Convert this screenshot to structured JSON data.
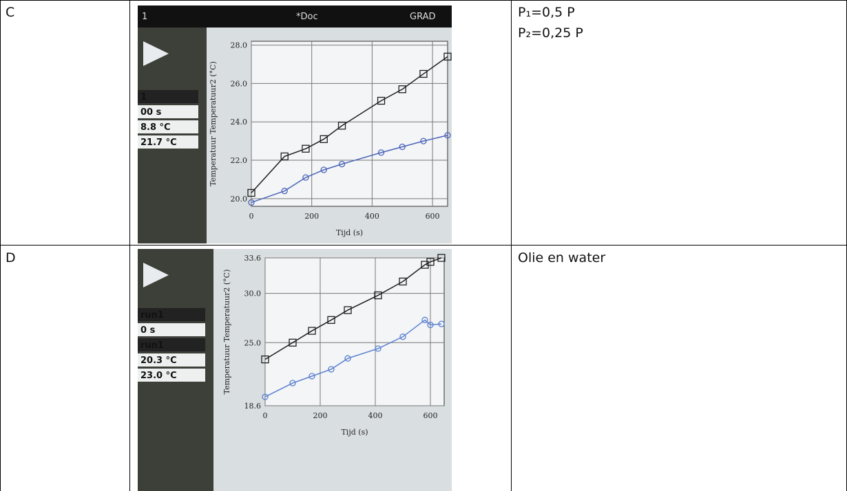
{
  "table": {
    "rows": [
      {
        "label": "C",
        "screen": {
          "topbar": [
            "1",
            "*Doc",
            "GRAD"
          ],
          "sidebar": [
            "1",
            "00 s",
            "8.8 °C",
            "21.7 °C"
          ],
          "plot": {
            "y_label": "Temperatuur Temperatuur2 (°C)",
            "x_label": "Tijd (s)",
            "xlim": [
              0,
              650
            ],
            "ylim": [
              19.6,
              28.2
            ],
            "xticks": [
              0,
              200,
              400,
              600
            ],
            "yticks": [
              {
                "value": 20,
                "label": "20.0"
              },
              {
                "value": 22,
                "label": "22.0"
              },
              {
                "value": 24,
                "label": "24.0"
              },
              {
                "value": 26,
                "label": "26.0"
              },
              {
                "value": 28,
                "label": "28.0"
              }
            ],
            "x": [
              0,
              110,
              180,
              240,
              300,
              430,
              500,
              570,
              650
            ],
            "series": [
              {
                "color": "#1e1e1e",
                "marker": "square",
                "values": [
                  20.3,
                  22.2,
                  22.6,
                  23.1,
                  23.8,
                  25.1,
                  25.7,
                  26.5,
                  27.4
                ]
              },
              {
                "color": "#4a63b8",
                "marker": "circle",
                "values": [
                  19.8,
                  20.4,
                  21.1,
                  21.5,
                  21.8,
                  22.4,
                  22.7,
                  23.0,
                  23.3
                ]
              }
            ]
          }
        },
        "notes": [
          "P₁=0,5 P",
          "P₂=0,25 P"
        ]
      },
      {
        "label": "D",
        "screen": {
          "sidebar": [
            "run1",
            "0 s",
            "run1",
            "20.3 °C",
            "23.0 °C"
          ],
          "plot": {
            "y_label": "Temperatuur Temperatuur2 (°C)",
            "x_label": "Tijd (s)",
            "xlim": [
              0,
              650
            ],
            "ylim": [
              18.6,
              33.6
            ],
            "xticks": [
              0,
              200,
              400,
              600
            ],
            "yticks": [
              {
                "value": 18.6,
                "label": "18.6"
              },
              {
                "value": 25,
                "label": "25.0"
              },
              {
                "value": 30,
                "label": "30.0"
              },
              {
                "value": 33.6,
                "label": "33.6"
              }
            ],
            "x": [
              0,
              100,
              170,
              240,
              300,
              410,
              500,
              580,
              600,
              640
            ],
            "series": [
              {
                "color": "#1e1e1e",
                "marker": "square",
                "values": [
                  23.3,
                  25.0,
                  26.2,
                  27.3,
                  28.3,
                  29.8,
                  31.2,
                  32.9,
                  33.2,
                  33.6
                ]
              },
              {
                "color": "#5a7fd0",
                "marker": "circle",
                "values": [
                  19.5,
                  20.9,
                  21.6,
                  22.3,
                  23.4,
                  24.4,
                  25.6,
                  27.3,
                  26.8,
                  26.9
                ]
              }
            ]
          }
        },
        "notes": [
          "Olie en water"
        ]
      }
    ]
  }
}
